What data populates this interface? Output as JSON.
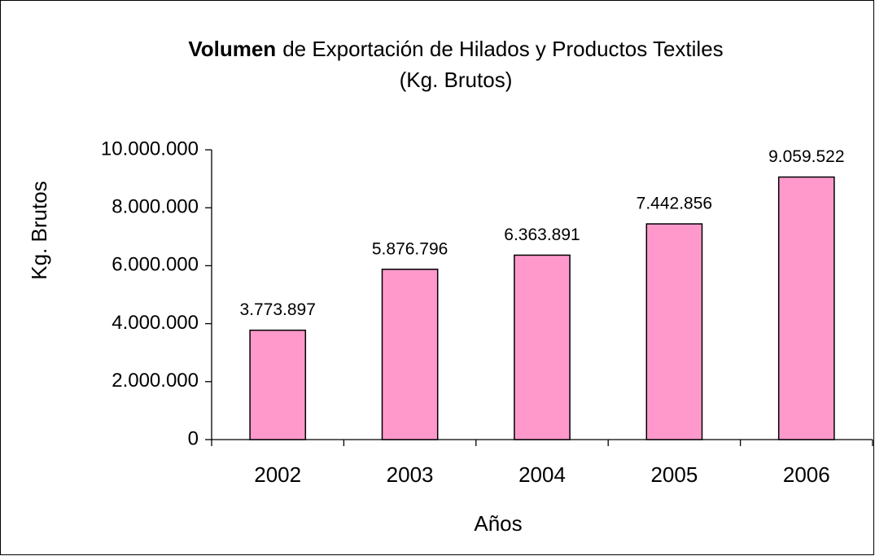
{
  "chart_data": {
    "type": "bar",
    "title_bold": "Volumen",
    "title": "de Exportación de Hilados y Productos Textiles",
    "subtitle": "(Kg. Brutos)",
    "x_label": "Años",
    "y_label": "Kg. Brutos",
    "categories": [
      "2002",
      "2003",
      "2004",
      "2005",
      "2006"
    ],
    "values": [
      3773897,
      5876796,
      6363891,
      7442856,
      9059522
    ],
    "value_labels": [
      "3.773.897",
      "5.876.796",
      "6.363.891",
      "7.442.856",
      "9.059.522"
    ],
    "color": "#ff99cc",
    "ylim": [
      0,
      10000000
    ],
    "yticks": [
      0,
      {
        "value": 2000000,
        "label": "2.000.000"
      },
      {
        "value": 4000000,
        "label": "4.000.000"
      },
      {
        "value": 6000000,
        "label": "6.000.000"
      },
      {
        "value": 8000000,
        "label": "8.000.000"
      },
      {
        "value": 10000000,
        "label": "10.000.000"
      }
    ],
    "grid": false
  }
}
